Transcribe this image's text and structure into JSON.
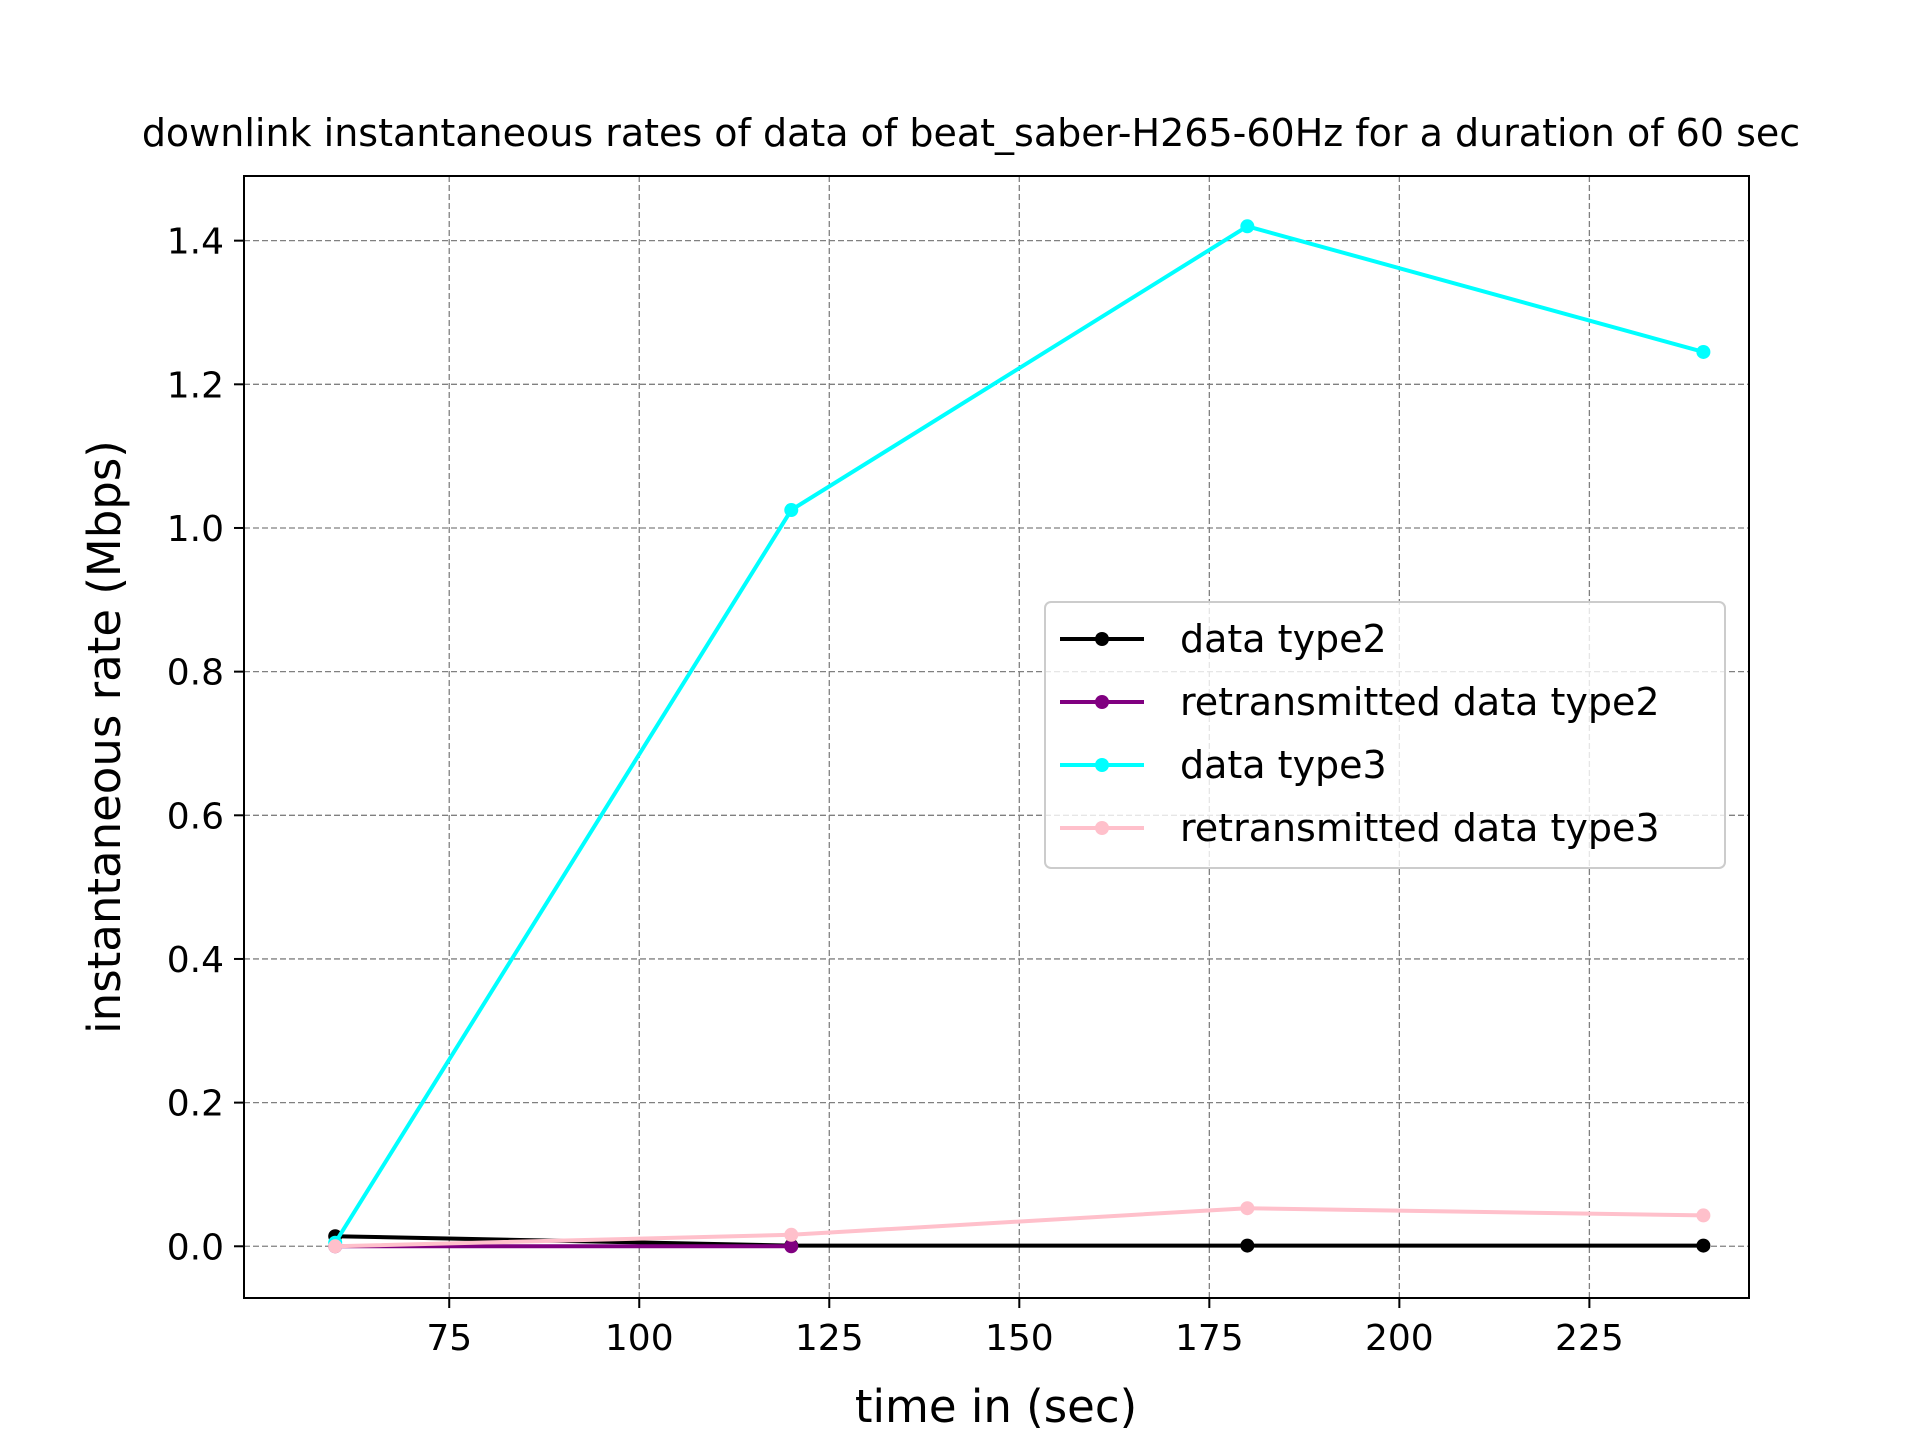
{
  "chart_data": {
    "type": "line",
    "title": "downlink instantaneous rates of data of beat_saber-H265-60Hz for a duration of 60 sec",
    "xlabel": "time in (sec)",
    "ylabel": "instantaneous rate (Mbps)",
    "xlim": [
      48,
      246
    ],
    "ylim": [
      -0.072,
      1.49
    ],
    "xticks": [
      75,
      100,
      125,
      150,
      175,
      200,
      225
    ],
    "yticks": [
      0.0,
      0.2,
      0.4,
      0.6,
      0.8,
      1.0,
      1.2,
      1.4
    ],
    "grid": true,
    "legend_position": "center-right",
    "series": [
      {
        "name": "data type2",
        "color": "#000000",
        "x": [
          60,
          120,
          180,
          240
        ],
        "y": [
          0.014,
          0.001,
          0.001,
          0.001
        ]
      },
      {
        "name": "retransmitted data type2",
        "color": "#800080",
        "x": [
          60,
          120
        ],
        "y": [
          0.0,
          0.0
        ]
      },
      {
        "name": "data type3",
        "color": "#00ffff",
        "x": [
          60,
          120,
          180,
          240
        ],
        "y": [
          0.005,
          1.025,
          1.42,
          1.245
        ]
      },
      {
        "name": "retransmitted data type3",
        "color": "#ffc0cb",
        "x": [
          60,
          120,
          180,
          240
        ],
        "y": [
          0.0,
          0.016,
          0.053,
          0.043
        ]
      }
    ]
  }
}
